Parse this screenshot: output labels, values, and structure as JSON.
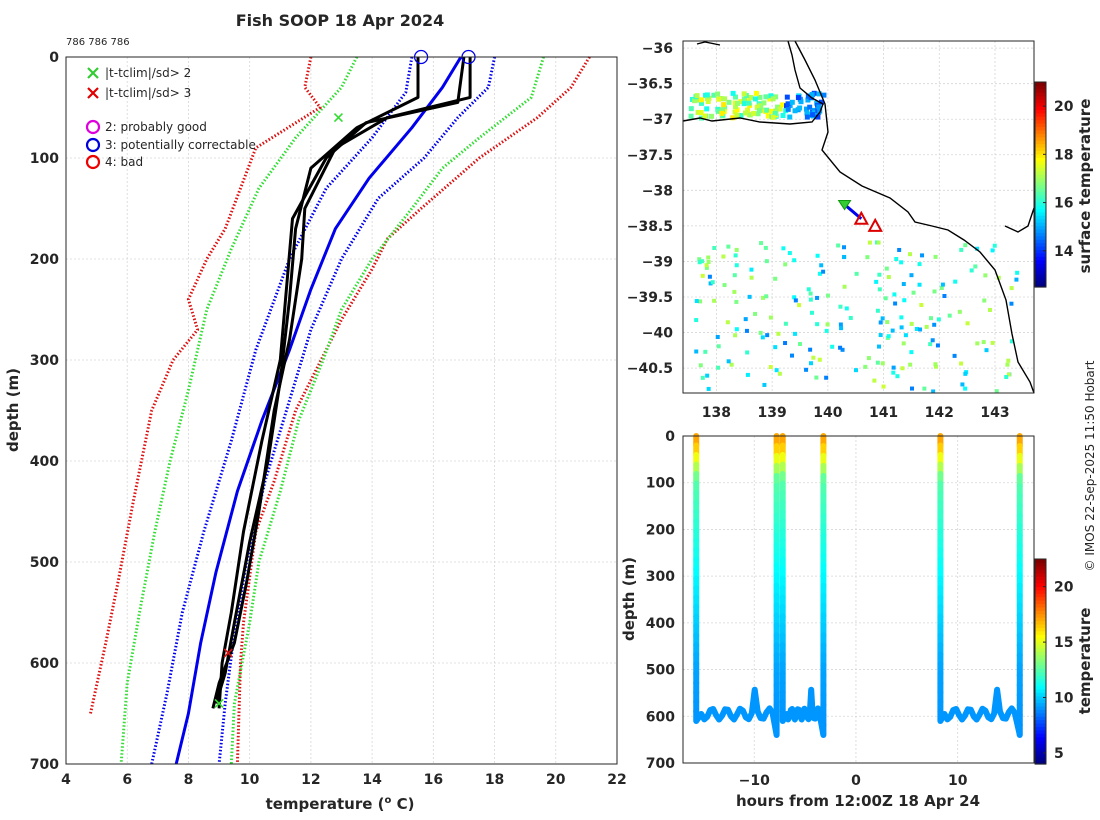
{
  "title": "Fish SOOP 18 Apr 2024",
  "profile_ids": "786 786 786",
  "footer_credit": "© IMOS 22-Sep-2025 11:50 Hobart",
  "legend": {
    "items": [
      {
        "marker": "x",
        "color": "#33cc33",
        "label": "|t-tclim|/sd> 2"
      },
      {
        "marker": "x",
        "color": "#e00000",
        "label": "|t-tclim|/sd> 3"
      },
      {
        "marker": "o",
        "color": "#dd00dd",
        "label": "2: probably good"
      },
      {
        "marker": "o",
        "color": "#0000dd",
        "label": "3: potentially correctable"
      },
      {
        "marker": "o",
        "color": "#ee0000",
        "label": "4: bad"
      }
    ]
  },
  "colors": {
    "black": "#000000",
    "blue": "#0000ee",
    "green": "#33dd33",
    "red": "#dd1111",
    "grid": "#d6d6d6"
  },
  "chart_data": [
    {
      "id": "profile",
      "type": "line",
      "title": "Fish SOOP 18 Apr 2024",
      "xlabel": "temperature (",
      "xlabel_sup": "o",
      "xlabel_end": " C)",
      "ylabel": "depth (m)",
      "xlim": [
        4,
        22
      ],
      "ylim": [
        700,
        0
      ],
      "xticks": [
        4,
        6,
        8,
        10,
        12,
        14,
        16,
        18,
        20,
        22
      ],
      "yticks": [
        0,
        100,
        200,
        300,
        400,
        500,
        600,
        700
      ],
      "series": [
        {
          "name": "clim +3sd",
          "style": "dotted",
          "color": "red",
          "points": [
            [
              21.1,
              0
            ],
            [
              20.5,
              30
            ],
            [
              19.4,
              60
            ],
            [
              17.5,
              100
            ],
            [
              15.6,
              150
            ],
            [
              14.5,
              180
            ],
            [
              14.0,
              210
            ],
            [
              13.0,
              260
            ],
            [
              12.0,
              320
            ],
            [
              11.5,
              350
            ],
            [
              10.8,
              420
            ],
            [
              10.2,
              470
            ],
            [
              9.8,
              560
            ],
            [
              9.7,
              600
            ],
            [
              9.6,
              700
            ]
          ]
        },
        {
          "name": "clim +2sd",
          "style": "dotted",
          "color": "green",
          "points": [
            [
              19.6,
              0
            ],
            [
              19.2,
              40
            ],
            [
              17.5,
              80
            ],
            [
              16.3,
              110
            ],
            [
              15.3,
              150
            ],
            [
              14.0,
              200
            ],
            [
              13.0,
              250
            ],
            [
              12.4,
              300
            ],
            [
              11.6,
              360
            ],
            [
              11.0,
              430
            ],
            [
              10.3,
              500
            ],
            [
              10.0,
              560
            ],
            [
              9.5,
              640
            ],
            [
              9.4,
              700
            ]
          ]
        },
        {
          "name": "clim +1sd",
          "style": "dotted",
          "color": "blue",
          "points": [
            [
              18.0,
              0
            ],
            [
              17.8,
              30
            ],
            [
              16.8,
              60
            ],
            [
              15.7,
              100
            ],
            [
              14.2,
              140
            ],
            [
              13.0,
              200
            ],
            [
              12.0,
              270
            ],
            [
              11.3,
              340
            ],
            [
              10.5,
              420
            ],
            [
              9.9,
              500
            ],
            [
              9.5,
              570
            ],
            [
              9.2,
              640
            ],
            [
              9.0,
              700
            ]
          ]
        },
        {
          "name": "clim mean",
          "style": "solid",
          "color": "blue",
          "points": [
            [
              16.9,
              0
            ],
            [
              16.3,
              30
            ],
            [
              15.3,
              70
            ],
            [
              13.9,
              120
            ],
            [
              12.8,
              170
            ],
            [
              12.0,
              230
            ],
            [
              11.3,
              290
            ],
            [
              10.4,
              360
            ],
            [
              9.6,
              430
            ],
            [
              8.9,
              510
            ],
            [
              8.4,
              580
            ],
            [
              8.0,
              650
            ],
            [
              7.6,
              700
            ]
          ]
        },
        {
          "name": "clim -1sd",
          "style": "dotted",
          "color": "blue",
          "points": [
            [
              15.3,
              0
            ],
            [
              15.1,
              35
            ],
            [
              14.0,
              80
            ],
            [
              12.5,
              130
            ],
            [
              11.3,
              200
            ],
            [
              10.2,
              290
            ],
            [
              9.4,
              380
            ],
            [
              8.5,
              470
            ],
            [
              7.8,
              550
            ],
            [
              7.3,
              630
            ],
            [
              6.8,
              700
            ]
          ]
        },
        {
          "name": "clim -2sd",
          "style": "dotted",
          "color": "green",
          "points": [
            [
              13.5,
              0
            ],
            [
              13.0,
              30
            ],
            [
              11.5,
              80
            ],
            [
              10.3,
              130
            ],
            [
              9.4,
              190
            ],
            [
              8.6,
              250
            ],
            [
              8.0,
              330
            ],
            [
              7.4,
              400
            ],
            [
              6.9,
              470
            ],
            [
              6.4,
              550
            ],
            [
              6.0,
              620
            ],
            [
              5.8,
              700
            ]
          ]
        },
        {
          "name": "clim -3sd",
          "style": "dotted",
          "color": "red",
          "points": [
            [
              12.0,
              0
            ],
            [
              11.8,
              30
            ],
            [
              12.3,
              50
            ],
            [
              10.2,
              90
            ],
            [
              9.7,
              130
            ],
            [
              9.2,
              170
            ],
            [
              8.6,
              200
            ],
            [
              8.0,
              240
            ],
            [
              8.3,
              270
            ],
            [
              7.5,
              300
            ],
            [
              6.8,
              350
            ],
            [
              6.2,
              440
            ],
            [
              5.7,
              520
            ],
            [
              5.3,
              580
            ],
            [
              4.8,
              650
            ]
          ]
        },
        {
          "name": "cast 1",
          "style": "solid",
          "color": "black",
          "points": [
            [
              17.2,
              0
            ],
            [
              17.2,
              40
            ],
            [
              14.5,
              60
            ],
            [
              12.8,
              90
            ],
            [
              11.8,
              150
            ],
            [
              11.7,
              200
            ],
            [
              11.3,
              280
            ],
            [
              10.8,
              350
            ],
            [
              10.3,
              450
            ],
            [
              9.9,
              520
            ],
            [
              9.5,
              580
            ],
            [
              9.0,
              620
            ],
            [
              8.8,
              645
            ]
          ]
        },
        {
          "name": "cast 2",
          "style": "solid",
          "color": "black",
          "points": [
            [
              15.5,
              0
            ],
            [
              15.5,
              40
            ],
            [
              13.5,
              70
            ],
            [
              12.0,
              110
            ],
            [
              11.5,
              170
            ],
            [
              11.3,
              240
            ],
            [
              11.0,
              320
            ],
            [
              10.6,
              400
            ],
            [
              10.0,
              480
            ],
            [
              9.5,
              560
            ],
            [
              9.2,
              610
            ],
            [
              8.9,
              640
            ]
          ]
        },
        {
          "name": "cast 3",
          "style": "solid",
          "color": "black",
          "points": [
            [
              17.0,
              0
            ],
            [
              16.8,
              45
            ],
            [
              13.8,
              65
            ],
            [
              12.5,
              100
            ],
            [
              11.4,
              160
            ],
            [
              11.2,
              230
            ],
            [
              11.0,
              300
            ],
            [
              10.4,
              380
            ],
            [
              9.8,
              470
            ],
            [
              9.4,
              550
            ],
            [
              9.1,
              600
            ],
            [
              9.0,
              645
            ]
          ]
        }
      ],
      "flags": [
        {
          "type": "circle",
          "color": "blue",
          "x": 15.6,
          "y": 0
        },
        {
          "type": "circle",
          "color": "blue",
          "x": 17.15,
          "y": 0
        },
        {
          "type": "x",
          "color": "green",
          "x": 12.9,
          "y": 60
        },
        {
          "type": "x",
          "color": "red",
          "x": 9.3,
          "y": 590
        },
        {
          "type": "x",
          "color": "green",
          "x": 9.0,
          "y": 640
        }
      ]
    },
    {
      "id": "map",
      "type": "heatmap",
      "colorbar_label": "surface temperature",
      "colorbar_range": [
        12.5,
        21
      ],
      "colorbar_ticks": [
        14,
        16,
        18,
        20
      ],
      "xlim": [
        137.4,
        143.7
      ],
      "ylim": [
        -40.85,
        -35.9
      ],
      "xticks": [
        138,
        139,
        140,
        141,
        142,
        143
      ],
      "yticks": [
        -36,
        -36.5,
        -37,
        -37.5,
        -38,
        -38.5,
        -39,
        -39.5,
        -40,
        -40.5
      ],
      "track": [
        [
          140.3,
          -38.2
        ],
        [
          140.6,
          -38.4
        ]
      ],
      "start_marker": [
        140.3,
        -38.2
      ],
      "flag_markers": [
        [
          140.6,
          -38.4
        ],
        [
          140.85,
          -38.5
        ]
      ]
    },
    {
      "id": "time-depth",
      "type": "line",
      "xlabel": "hours from 12:00Z 18 Apr 24",
      "ylabel": "depth (m)",
      "colorbar_label": "temperature",
      "colorbar_range": [
        4,
        22.5
      ],
      "colorbar_ticks": [
        5,
        10,
        15,
        20
      ],
      "xlim": [
        -17,
        17.5
      ],
      "ylim": [
        700,
        0
      ],
      "xticks": [
        -10,
        0,
        10
      ],
      "yticks": [
        0,
        100,
        200,
        300,
        400,
        500,
        600,
        700
      ],
      "casts": [
        {
          "down_hour": -15.7,
          "bottom_start": -15.2,
          "bottom_end": -8.2,
          "up_hour": -7.8
        },
        {
          "down_hour": -7.2,
          "bottom_start": -6.8,
          "bottom_end": -3.6,
          "up_hour": -3.2
        },
        {
          "down_hour": 8.3,
          "bottom_start": 8.7,
          "bottom_end": 15.6,
          "up_hour": 16.1
        }
      ]
    }
  ]
}
